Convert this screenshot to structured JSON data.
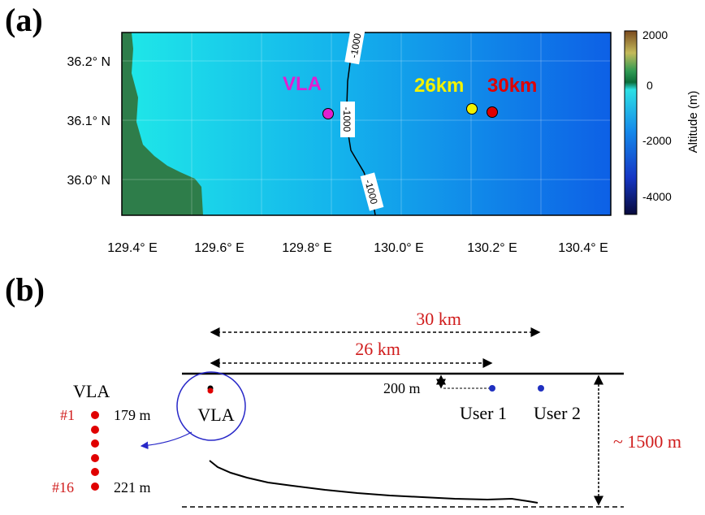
{
  "panel_a": {
    "label": "(a)",
    "y_ticks": [
      "36.2° N",
      "36.1° N",
      "36.0° N"
    ],
    "x_ticks": [
      "129.4° E",
      "129.6° E",
      "129.8° E",
      "130.0° E",
      "130.2° E",
      "130.4° E"
    ],
    "contour_labels": [
      "-1000",
      "-1000",
      "-1000"
    ],
    "markers": [
      {
        "label": "VLA",
        "color": "#e01fd0"
      },
      {
        "label": "26km",
        "color": "#f2f200"
      },
      {
        "label": "30km",
        "color": "#e00000"
      }
    ],
    "colorbar": {
      "label": "Altitude (m)",
      "ticks": [
        "2000",
        "0",
        "-2000",
        "-4000"
      ]
    }
  },
  "panel_b": {
    "label": "(b)",
    "dist_30": "30 km",
    "dist_26": "26 km",
    "depth_200": "200 m",
    "depth_1500": "~ 1500 m",
    "vla_inside": "VLA",
    "user1": "User 1",
    "user2": "User 2",
    "vla_title": "VLA",
    "h1_index": "#1",
    "h1_depth": "179 m",
    "h16_index": "#16",
    "h16_depth": "221 m",
    "colors": {
      "accent": "#d01c1c",
      "user": "#2030c0",
      "circle": "#2828c8"
    }
  }
}
